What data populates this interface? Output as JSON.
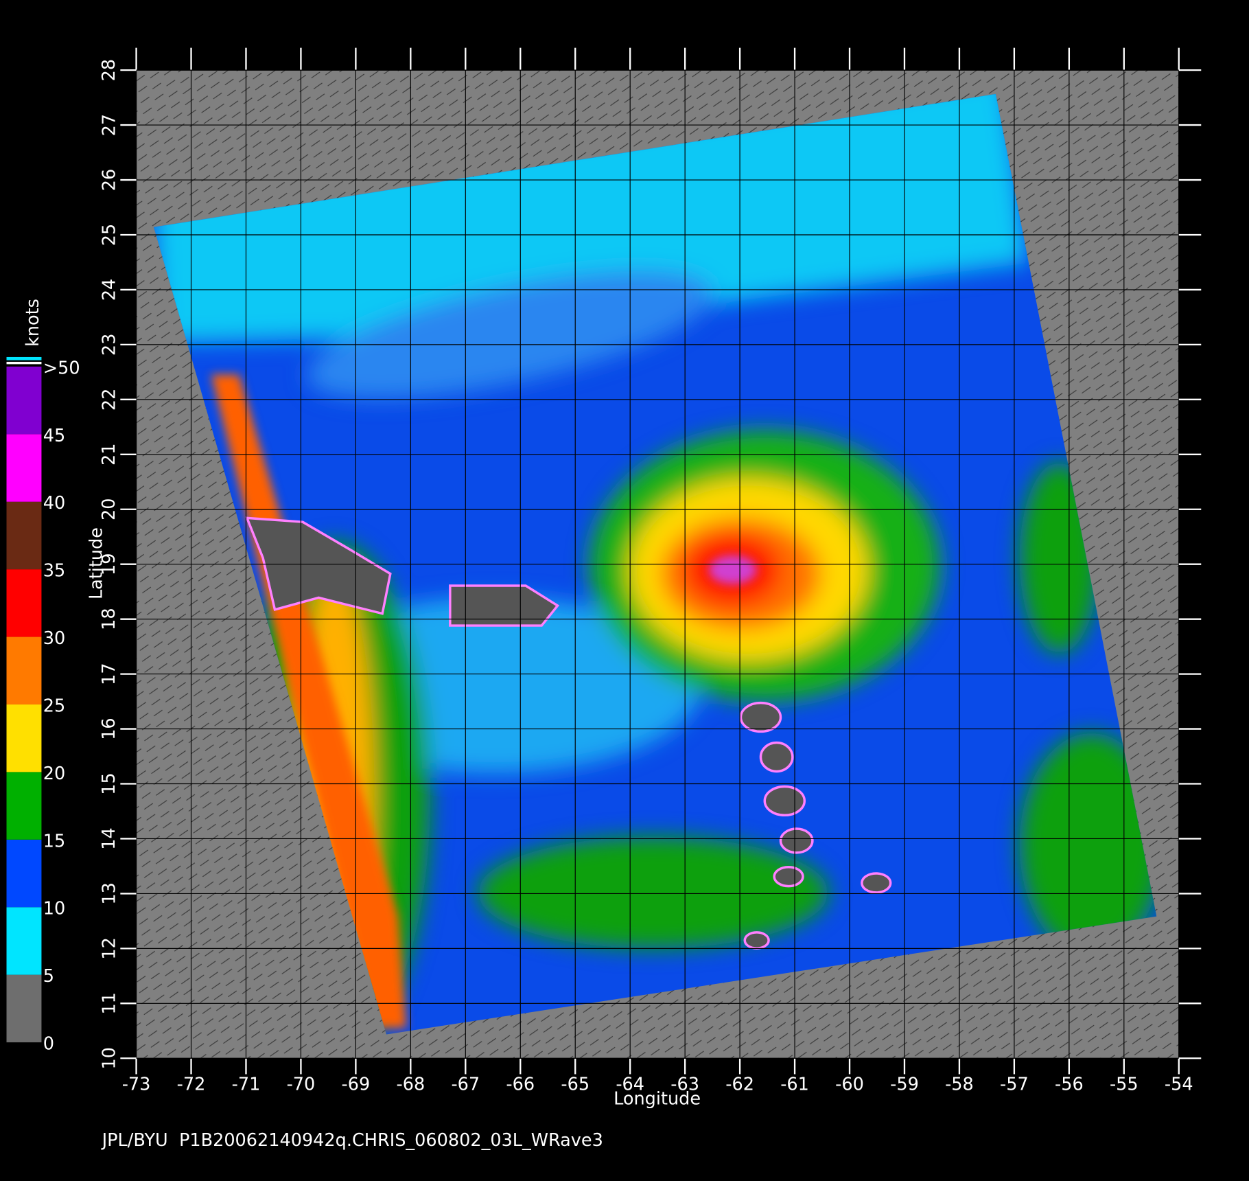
{
  "chart_data": {
    "type": "map",
    "xlabel": "Longitude",
    "ylabel": "Latitude",
    "xlim": [
      -73,
      -54
    ],
    "ylim": [
      10,
      28
    ],
    "xticks": [
      -73,
      -72,
      -71,
      -70,
      -69,
      -68,
      -67,
      -66,
      -65,
      -64,
      -63,
      -62,
      -61,
      -60,
      -59,
      -58,
      -57,
      -56,
      -55,
      -54
    ],
    "yticks": [
      10,
      11,
      12,
      13,
      14,
      15,
      16,
      17,
      18,
      19,
      20,
      21,
      22,
      23,
      24,
      25,
      26,
      27,
      28
    ],
    "grid": true,
    "colorbar": {
      "label": "knots",
      "ticks": [
        0,
        5,
        10,
        15,
        20,
        25,
        30,
        35,
        40,
        45,
        {
          "value": 50,
          "label": ">50"
        }
      ],
      "colors": [
        "#6e6e6e",
        "#00e5ff",
        "#0048ff",
        "#00b000",
        "#ffe000",
        "#ff7a00",
        "#ff0000",
        "#6a2a14",
        "#ff00ff",
        "#8000d0"
      ]
    },
    "footer": "JPL/BYU  P1B20062140942q.CHRIS_060802_03L_WRave3"
  }
}
